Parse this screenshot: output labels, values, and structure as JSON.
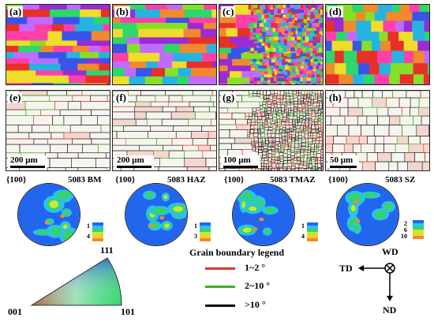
{
  "figure": {
    "ebsd_panels": [
      {
        "label": "(a)",
        "kind": "ipf-map",
        "zone": "BM"
      },
      {
        "label": "(b)",
        "kind": "ipf-map",
        "zone": "HAZ"
      },
      {
        "label": "(c)",
        "kind": "ipf-map",
        "zone": "TMAZ"
      },
      {
        "label": "(d)",
        "kind": "ipf-map",
        "zone": "SZ"
      }
    ],
    "gb_panels": [
      {
        "label": "(e)",
        "scale_text": "200 μm"
      },
      {
        "label": "(f)",
        "scale_text": "200 μm"
      },
      {
        "label": "(g)",
        "scale_text": "100 μm"
      },
      {
        "label": "(h)",
        "scale_text": "50 μm"
      }
    ],
    "pole_figures": [
      {
        "plane": "{100}",
        "title": "5083 BM",
        "scale_top": "1",
        "scale_bottom": "4"
      },
      {
        "plane": "{100}",
        "title": "5083 HAZ",
        "scale_top": "1",
        "scale_bottom": "3"
      },
      {
        "plane": "{100}",
        "title": "5083 TMAZ",
        "scale_top": "1",
        "scale_bottom": "4"
      },
      {
        "plane": "{100}",
        "title": "5083 SZ",
        "scale_top": "2",
        "scale_mid": "6",
        "scale_bottom": "10"
      }
    ],
    "ipf_triangle": {
      "corner_top": "111",
      "corner_left": "001",
      "corner_right": "101"
    },
    "gb_legend": {
      "title": "Grain boundary legend",
      "items": [
        {
          "text": "1~2 °",
          "color": "#e8302a"
        },
        {
          "text": "2~10 °",
          "color": "#3cb01e"
        },
        {
          "text": ">10 °",
          "color": "#000000"
        }
      ]
    },
    "axes": {
      "wd": "WD",
      "td": "TD",
      "nd": "ND"
    },
    "colors": {
      "ipf_palette": [
        "#e8302a",
        "#ff3fa8",
        "#9b2bd6",
        "#3a54e8",
        "#27b3e0",
        "#2fd66a",
        "#86e02a",
        "#f0dc2a",
        "#f08a2a",
        "#c06bff"
      ],
      "pf_scale": [
        "#2266ee",
        "#29c0ff",
        "#36d36a",
        "#c4e83a",
        "#f5d02c",
        "#f28a2a",
        "#e8302a"
      ]
    }
  }
}
